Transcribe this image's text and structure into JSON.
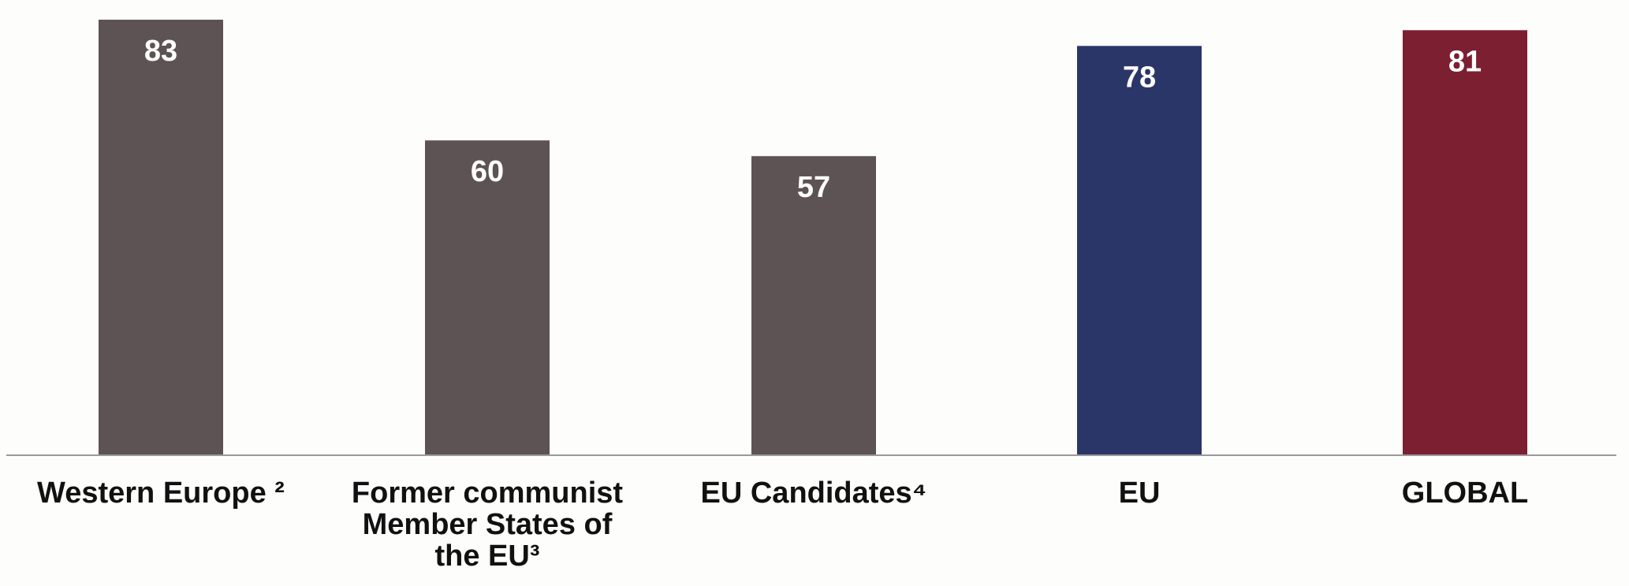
{
  "chart_data": {
    "type": "bar",
    "categories": [
      [
        "Western Europe ²"
      ],
      [
        "Former communist",
        "Member States of",
        "the EU³"
      ],
      [
        "EU Candidates⁴"
      ],
      [
        "EU"
      ],
      [
        "GLOBAL"
      ]
    ],
    "values": [
      83,
      60,
      57,
      78,
      81
    ],
    "colors": [
      "#5d5355",
      "#5d5355",
      "#5d5355",
      "#2b3668",
      "#7b1f31"
    ],
    "label_color": "#ffffff",
    "axis_color": "#9a9a9a",
    "ylim": [
      0,
      83
    ],
    "grid": false,
    "title": "",
    "xlabel": "",
    "ylabel": ""
  }
}
